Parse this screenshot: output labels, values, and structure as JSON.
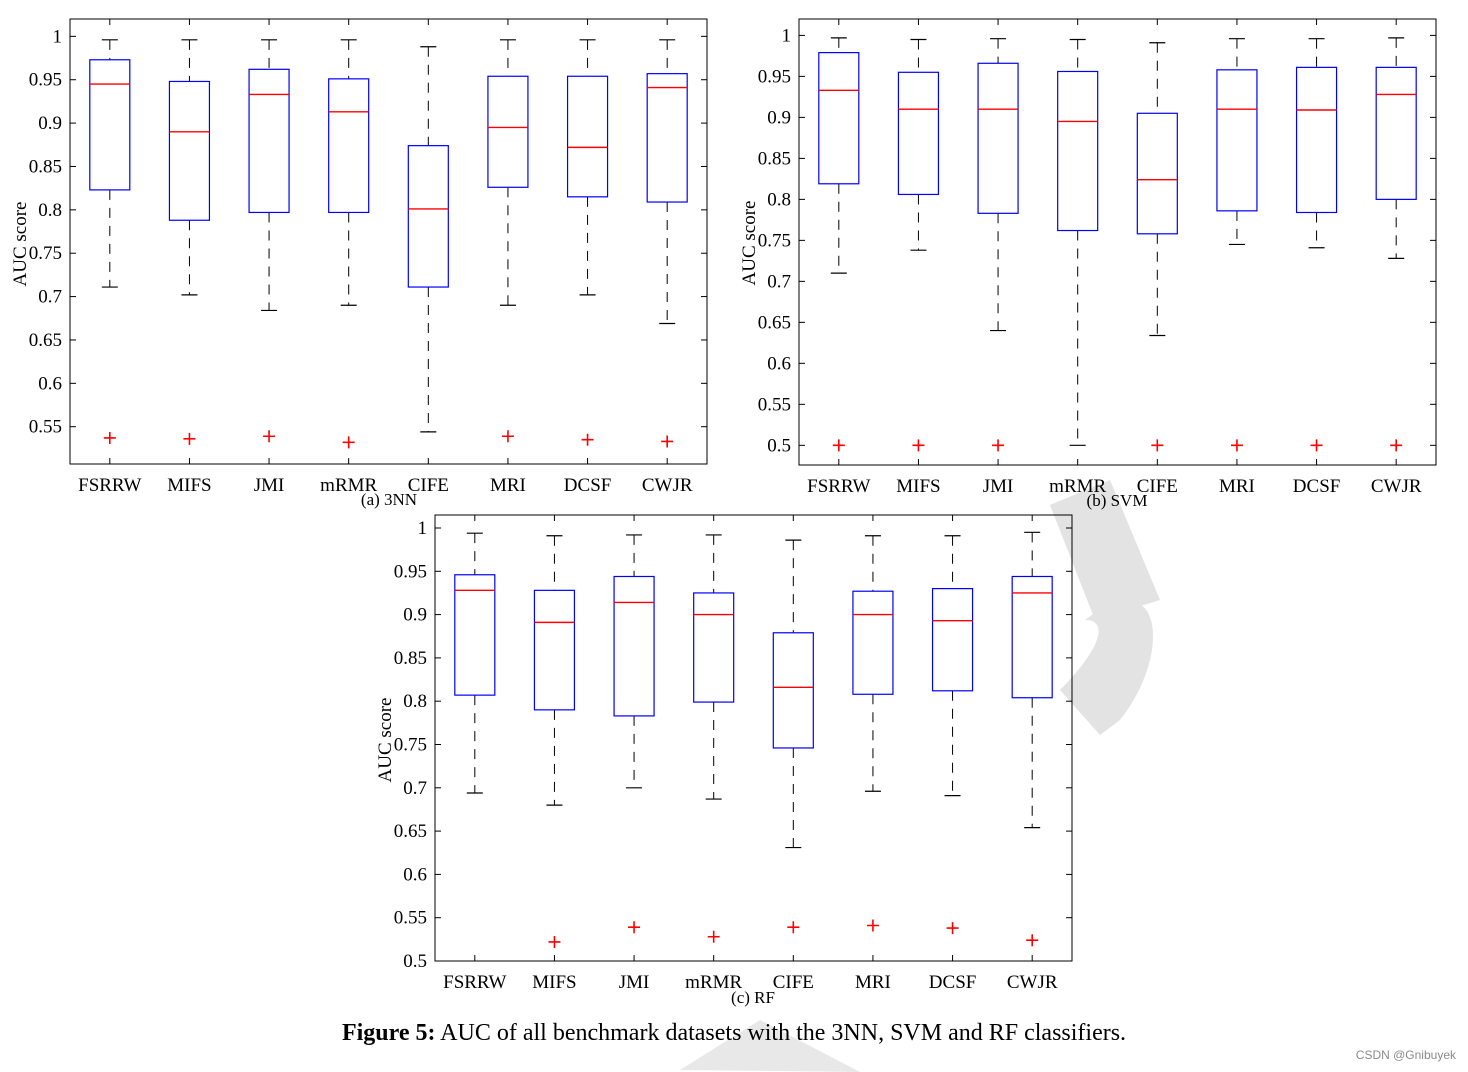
{
  "figure": {
    "caption_bold": "Figure 5:",
    "caption_text": "AUC of all benchmark datasets with the 3NN, SVM and RF classifiers.",
    "watermark": "CSDN @Gnibuyek"
  },
  "colors": {
    "box": "#0000ff",
    "median": "#ff0000",
    "whisker": "#000000",
    "outlier": "#ff0000",
    "axis": "#000000"
  },
  "chart_data": [
    {
      "type": "box",
      "subtitle": "(a) 3NN",
      "ylabel": "AUC score",
      "categories": [
        "FSRRW",
        "MIFS",
        "JMI",
        "mRMR",
        "CIFE",
        "MRI",
        "DCSF",
        "CWJR"
      ],
      "ylim": [
        0.507,
        1.02
      ],
      "yticks": [
        0.55,
        0.6,
        0.65,
        0.7,
        0.75,
        0.8,
        0.85,
        0.9,
        0.95,
        1
      ],
      "ytick_labels": [
        "0.55",
        "0.6",
        "0.65",
        "0.7",
        "0.75",
        "0.8",
        "0.85",
        "0.9",
        "0.95",
        "1"
      ],
      "boxes": [
        {
          "whisker_low": 0.711,
          "q1": 0.823,
          "median": 0.945,
          "q3": 0.973,
          "whisker_high": 0.996,
          "outliers": [
            0.537
          ]
        },
        {
          "whisker_low": 0.702,
          "q1": 0.788,
          "median": 0.89,
          "q3": 0.948,
          "whisker_high": 0.996,
          "outliers": [
            0.536
          ]
        },
        {
          "whisker_low": 0.684,
          "q1": 0.797,
          "median": 0.933,
          "q3": 0.962,
          "whisker_high": 0.996,
          "outliers": [
            0.539
          ]
        },
        {
          "whisker_low": 0.69,
          "q1": 0.797,
          "median": 0.913,
          "q3": 0.951,
          "whisker_high": 0.996,
          "outliers": [
            0.532
          ]
        },
        {
          "whisker_low": 0.544,
          "q1": 0.711,
          "median": 0.801,
          "q3": 0.874,
          "whisker_high": 0.988,
          "outliers": []
        },
        {
          "whisker_low": 0.69,
          "q1": 0.826,
          "median": 0.895,
          "q3": 0.954,
          "whisker_high": 0.996,
          "outliers": [
            0.539
          ]
        },
        {
          "whisker_low": 0.702,
          "q1": 0.815,
          "median": 0.872,
          "q3": 0.954,
          "whisker_high": 0.996,
          "outliers": [
            0.535
          ]
        },
        {
          "whisker_low": 0.669,
          "q1": 0.809,
          "median": 0.941,
          "q3": 0.957,
          "whisker_high": 0.996,
          "outliers": [
            0.533
          ]
        }
      ]
    },
    {
      "type": "box",
      "subtitle": "(b) SVM",
      "ylabel": "AUC score",
      "categories": [
        "FSRRW",
        "MIFS",
        "JMI",
        "mRMR",
        "CIFE",
        "MRI",
        "DCSF",
        "CWJR"
      ],
      "ylim": [
        0.476,
        1.02
      ],
      "yticks": [
        0.5,
        0.55,
        0.6,
        0.65,
        0.7,
        0.75,
        0.8,
        0.85,
        0.9,
        0.95,
        1
      ],
      "ytick_labels": [
        "0.5",
        "0.55",
        "0.6",
        "0.65",
        "0.7",
        "0.75",
        "0.8",
        "0.85",
        "0.9",
        "0.95",
        "1"
      ],
      "boxes": [
        {
          "whisker_low": 0.71,
          "q1": 0.819,
          "median": 0.933,
          "q3": 0.979,
          "whisker_high": 0.997,
          "outliers": [
            0.5
          ]
        },
        {
          "whisker_low": 0.738,
          "q1": 0.806,
          "median": 0.91,
          "q3": 0.955,
          "whisker_high": 0.995,
          "outliers": [
            0.5
          ]
        },
        {
          "whisker_low": 0.64,
          "q1": 0.783,
          "median": 0.91,
          "q3": 0.966,
          "whisker_high": 0.996,
          "outliers": [
            0.5
          ]
        },
        {
          "whisker_low": 0.5,
          "q1": 0.762,
          "median": 0.895,
          "q3": 0.956,
          "whisker_high": 0.995,
          "outliers": []
        },
        {
          "whisker_low": 0.634,
          "q1": 0.758,
          "median": 0.824,
          "q3": 0.905,
          "whisker_high": 0.991,
          "outliers": [
            0.5
          ]
        },
        {
          "whisker_low": 0.745,
          "q1": 0.786,
          "median": 0.91,
          "q3": 0.958,
          "whisker_high": 0.996,
          "outliers": [
            0.5
          ]
        },
        {
          "whisker_low": 0.741,
          "q1": 0.784,
          "median": 0.909,
          "q3": 0.961,
          "whisker_high": 0.996,
          "outliers": [
            0.5
          ]
        },
        {
          "whisker_low": 0.728,
          "q1": 0.8,
          "median": 0.928,
          "q3": 0.961,
          "whisker_high": 0.997,
          "outliers": [
            0.5
          ]
        }
      ]
    },
    {
      "type": "box",
      "subtitle": "(c) RF",
      "ylabel": "AUC score",
      "categories": [
        "FSRRW",
        "MIFS",
        "JMI",
        "mRMR",
        "CIFE",
        "MRI",
        "DCSF",
        "CWJR"
      ],
      "ylim": [
        0.5,
        1.015
      ],
      "yticks": [
        0.5,
        0.55,
        0.6,
        0.65,
        0.7,
        0.75,
        0.8,
        0.85,
        0.9,
        0.95,
        1
      ],
      "ytick_labels": [
        "0.5",
        "0.55",
        "0.6",
        "0.65",
        "0.7",
        "0.75",
        "0.8",
        "0.85",
        "0.9",
        "0.95",
        "1"
      ],
      "boxes": [
        {
          "whisker_low": 0.694,
          "q1": 0.807,
          "median": 0.928,
          "q3": 0.946,
          "whisker_high": 0.994,
          "outliers": []
        },
        {
          "whisker_low": 0.68,
          "q1": 0.79,
          "median": 0.891,
          "q3": 0.928,
          "whisker_high": 0.991,
          "outliers": [
            0.522
          ]
        },
        {
          "whisker_low": 0.7,
          "q1": 0.783,
          "median": 0.914,
          "q3": 0.944,
          "whisker_high": 0.992,
          "outliers": [
            0.539
          ]
        },
        {
          "whisker_low": 0.687,
          "q1": 0.799,
          "median": 0.9,
          "q3": 0.925,
          "whisker_high": 0.992,
          "outliers": [
            0.528
          ]
        },
        {
          "whisker_low": 0.631,
          "q1": 0.746,
          "median": 0.816,
          "q3": 0.879,
          "whisker_high": 0.986,
          "outliers": [
            0.539
          ]
        },
        {
          "whisker_low": 0.696,
          "q1": 0.808,
          "median": 0.9,
          "q3": 0.927,
          "whisker_high": 0.991,
          "outliers": [
            0.541
          ]
        },
        {
          "whisker_low": 0.691,
          "q1": 0.812,
          "median": 0.893,
          "q3": 0.93,
          "whisker_high": 0.991,
          "outliers": [
            0.538
          ]
        },
        {
          "whisker_low": 0.654,
          "q1": 0.804,
          "median": 0.925,
          "q3": 0.944,
          "whisker_high": 0.995,
          "outliers": [
            0.524
          ]
        }
      ]
    }
  ]
}
